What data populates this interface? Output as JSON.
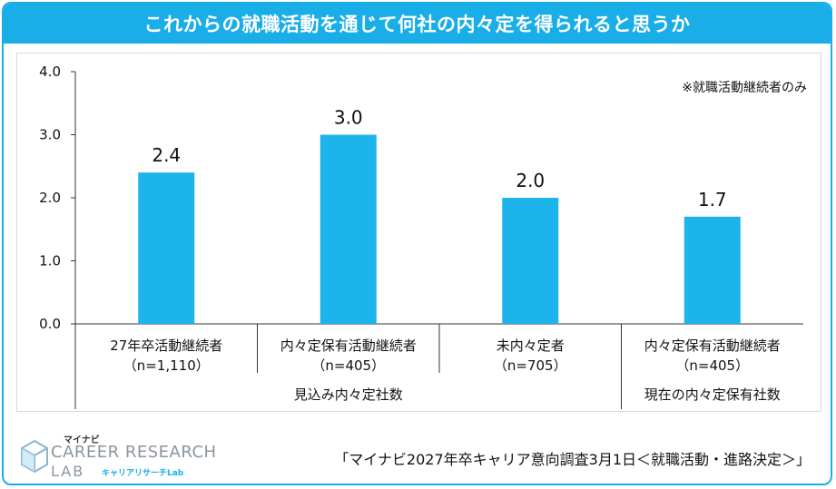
{
  "header": {
    "title": "これからの就職活動を通じて何社の内々定を得られると思うか"
  },
  "note": "※就職活動継続者のみ",
  "chart_data": {
    "type": "bar",
    "title": "これからの就職活動を通じて何社の内々定を得られると思うか",
    "categories": [
      [
        "27年卒活動継続者",
        "（n=1,110）"
      ],
      [
        "内々定保有活動継続者",
        "（n=405）"
      ],
      [
        "未内々定者",
        "（n=705）"
      ],
      [
        "内々定保有活動継続者",
        "（n=405）"
      ]
    ],
    "values": [
      2.4,
      3.0,
      2.0,
      1.7
    ],
    "value_labels": [
      "2.4",
      "3.0",
      "2.0",
      "1.7"
    ],
    "yticks": [
      "0.0",
      "1.0",
      "2.0",
      "3.0",
      "4.0"
    ],
    "ylim": [
      0,
      4
    ],
    "groups": [
      {
        "label": "見込み内々定社数",
        "span": [
          0,
          2
        ]
      },
      {
        "label": "現在の内々定保有社数",
        "span": [
          3,
          3
        ]
      }
    ],
    "bar_color": "#1cb4ea",
    "grid": false
  },
  "footer": {
    "source": "「マイナビ2027年卒キャリア意向調査3月1日＜就職活動・進路決定＞」",
    "logo_top": "マイナビ",
    "logo_main": "CAREER RESEARCH",
    "logo_lab": "LAB",
    "logo_kana": "キャリアリサーチLab"
  }
}
